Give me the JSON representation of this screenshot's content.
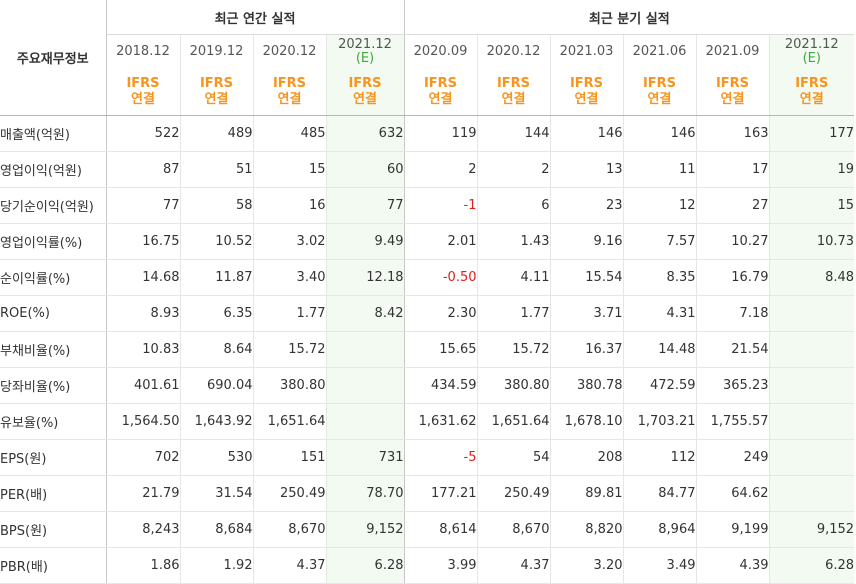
{
  "headers": {
    "row_label_header": "주요재무정보",
    "annual_group": "최근 연간 실적",
    "quarter_group": "최근 분기 실적",
    "periods": [
      "2018.12",
      "2019.12",
      "2020.12",
      "2021.12",
      "2020.09",
      "2020.12",
      "2021.03",
      "2021.06",
      "2021.09",
      "2021.12"
    ],
    "estimate_marker": "(E)",
    "basis_line1": "IFRS",
    "basis_line2": "연결"
  },
  "rows": [
    {
      "label": "매출액(억원)",
      "values": [
        "522",
        "489",
        "485",
        "632",
        "119",
        "144",
        "146",
        "146",
        "163",
        "177"
      ]
    },
    {
      "label": "영업이익(억원)",
      "values": [
        "87",
        "51",
        "15",
        "60",
        "2",
        "2",
        "13",
        "11",
        "17",
        "19"
      ]
    },
    {
      "label": "당기순이익(억원)",
      "values": [
        "77",
        "58",
        "16",
        "77",
        "-1",
        "6",
        "23",
        "12",
        "27",
        "15"
      ]
    },
    {
      "label": "영업이익률(%)",
      "values": [
        "16.75",
        "10.52",
        "3.02",
        "9.49",
        "2.01",
        "1.43",
        "9.16",
        "7.57",
        "10.27",
        "10.73"
      ]
    },
    {
      "label": "순이익률(%)",
      "values": [
        "14.68",
        "11.87",
        "3.40",
        "12.18",
        "-0.50",
        "4.11",
        "15.54",
        "8.35",
        "16.79",
        "8.48"
      ]
    },
    {
      "label": "ROE(%)",
      "values": [
        "8.93",
        "6.35",
        "1.77",
        "8.42",
        "2.30",
        "1.77",
        "3.71",
        "4.31",
        "7.18",
        ""
      ]
    },
    {
      "label": "부채비율(%)",
      "values": [
        "10.83",
        "8.64",
        "15.72",
        "",
        "15.65",
        "15.72",
        "16.37",
        "14.48",
        "21.54",
        ""
      ]
    },
    {
      "label": "당좌비율(%)",
      "values": [
        "401.61",
        "690.04",
        "380.80",
        "",
        "434.59",
        "380.80",
        "380.78",
        "472.59",
        "365.23",
        ""
      ]
    },
    {
      "label": "유보율(%)",
      "values": [
        "1,564.50",
        "1,643.92",
        "1,651.64",
        "",
        "1,631.62",
        "1,651.64",
        "1,678.10",
        "1,703.21",
        "1,755.57",
        ""
      ]
    },
    {
      "label": "EPS(원)",
      "values": [
        "702",
        "530",
        "151",
        "731",
        "-5",
        "54",
        "208",
        "112",
        "249",
        ""
      ]
    },
    {
      "label": "PER(배)",
      "values": [
        "21.79",
        "31.54",
        "250.49",
        "78.70",
        "177.21",
        "250.49",
        "89.81",
        "84.77",
        "64.62",
        ""
      ]
    },
    {
      "label": "BPS(원)",
      "values": [
        "8,243",
        "8,684",
        "8,670",
        "9,152",
        "8,614",
        "8,670",
        "8,820",
        "8,964",
        "9,199",
        "9,152"
      ]
    },
    {
      "label": "PBR(배)",
      "values": [
        "1.86",
        "1.92",
        "4.37",
        "6.28",
        "3.99",
        "4.37",
        "3.20",
        "3.49",
        "4.39",
        "6.28"
      ]
    }
  ],
  "colors": {
    "negative": "#e0201a",
    "basis": "#f7941d",
    "estimate_bg": "#f2faf1",
    "estimate_marker": "#3fa93f"
  }
}
